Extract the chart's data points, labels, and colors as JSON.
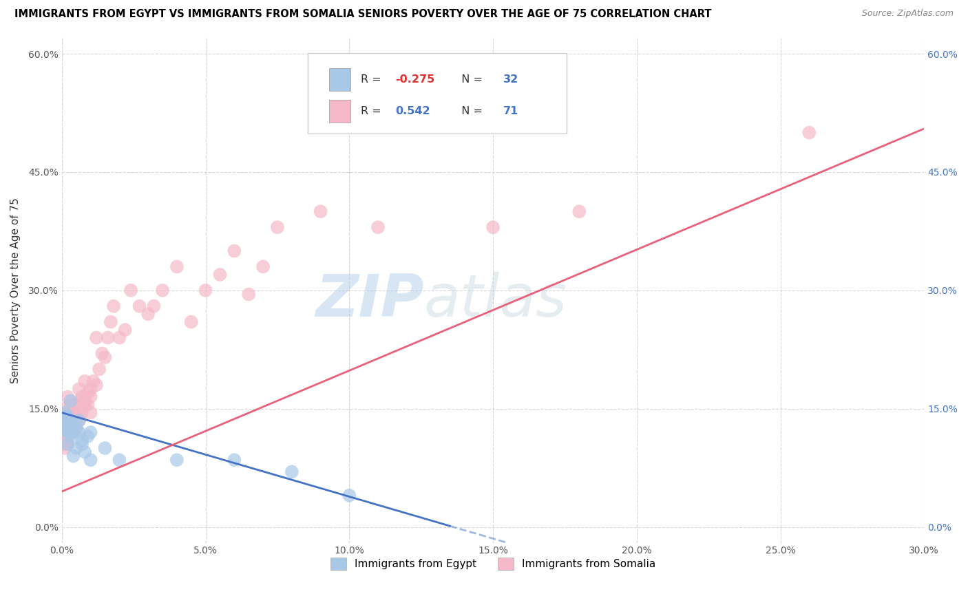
{
  "title": "IMMIGRANTS FROM EGYPT VS IMMIGRANTS FROM SOMALIA SENIORS POVERTY OVER THE AGE OF 75 CORRELATION CHART",
  "source": "Source: ZipAtlas.com",
  "ylabel": "Seniors Poverty Over the Age of 75",
  "xmin": 0.0,
  "xmax": 0.3,
  "ymin": -0.02,
  "ymax": 0.62,
  "egypt_color": "#a8c8e8",
  "somalia_color": "#f4b8c8",
  "egypt_line_color": "#4472c4",
  "somalia_line_color": "#e8607a",
  "right_tick_color": "#4472c4",
  "egypt_R": -0.275,
  "egypt_N": 32,
  "somalia_R": 0.542,
  "somalia_N": 71,
  "watermark_zip": "ZIP",
  "watermark_atlas": "atlas",
  "legend_entries": [
    "Immigrants from Egypt",
    "Immigrants from Somalia"
  ],
  "egypt_line_x0": 0.0,
  "egypt_line_y0": 0.145,
  "egypt_line_x1": 0.155,
  "egypt_line_y1": -0.02,
  "egypt_line_solid_end": 0.135,
  "somalia_line_x0": 0.0,
  "somalia_line_y0": 0.045,
  "somalia_line_x1": 0.3,
  "somalia_line_y1": 0.505,
  "egypt_scatter_x": [
    0.001,
    0.001,
    0.001,
    0.001,
    0.002,
    0.002,
    0.002,
    0.002,
    0.003,
    0.003,
    0.003,
    0.003,
    0.004,
    0.004,
    0.004,
    0.005,
    0.005,
    0.005,
    0.006,
    0.006,
    0.007,
    0.007,
    0.008,
    0.009,
    0.01,
    0.01,
    0.015,
    0.02,
    0.04,
    0.06,
    0.08,
    0.1
  ],
  "egypt_scatter_y": [
    0.135,
    0.14,
    0.145,
    0.125,
    0.13,
    0.12,
    0.14,
    0.105,
    0.135,
    0.115,
    0.12,
    0.16,
    0.13,
    0.12,
    0.09,
    0.13,
    0.125,
    0.1,
    0.12,
    0.135,
    0.105,
    0.11,
    0.095,
    0.115,
    0.085,
    0.12,
    0.1,
    0.085,
    0.085,
    0.085,
    0.07,
    0.04
  ],
  "somalia_scatter_x": [
    0.001,
    0.001,
    0.001,
    0.001,
    0.001,
    0.001,
    0.001,
    0.002,
    0.002,
    0.002,
    0.002,
    0.002,
    0.002,
    0.002,
    0.003,
    0.003,
    0.003,
    0.003,
    0.003,
    0.004,
    0.004,
    0.004,
    0.004,
    0.004,
    0.005,
    0.005,
    0.005,
    0.005,
    0.006,
    0.006,
    0.006,
    0.006,
    0.007,
    0.007,
    0.008,
    0.008,
    0.008,
    0.009,
    0.009,
    0.01,
    0.01,
    0.01,
    0.011,
    0.012,
    0.012,
    0.013,
    0.014,
    0.015,
    0.016,
    0.017,
    0.018,
    0.02,
    0.022,
    0.024,
    0.027,
    0.03,
    0.032,
    0.035,
    0.04,
    0.045,
    0.05,
    0.055,
    0.06,
    0.065,
    0.07,
    0.075,
    0.09,
    0.11,
    0.15,
    0.18,
    0.26
  ],
  "somalia_scatter_y": [
    0.13,
    0.14,
    0.12,
    0.15,
    0.1,
    0.135,
    0.105,
    0.135,
    0.14,
    0.13,
    0.115,
    0.12,
    0.165,
    0.105,
    0.145,
    0.14,
    0.12,
    0.155,
    0.13,
    0.15,
    0.135,
    0.145,
    0.12,
    0.135,
    0.155,
    0.14,
    0.125,
    0.13,
    0.14,
    0.16,
    0.135,
    0.175,
    0.165,
    0.145,
    0.155,
    0.16,
    0.185,
    0.155,
    0.17,
    0.165,
    0.145,
    0.175,
    0.185,
    0.18,
    0.24,
    0.2,
    0.22,
    0.215,
    0.24,
    0.26,
    0.28,
    0.24,
    0.25,
    0.3,
    0.28,
    0.27,
    0.28,
    0.3,
    0.33,
    0.26,
    0.3,
    0.32,
    0.35,
    0.295,
    0.33,
    0.38,
    0.4,
    0.38,
    0.38,
    0.4,
    0.5
  ]
}
